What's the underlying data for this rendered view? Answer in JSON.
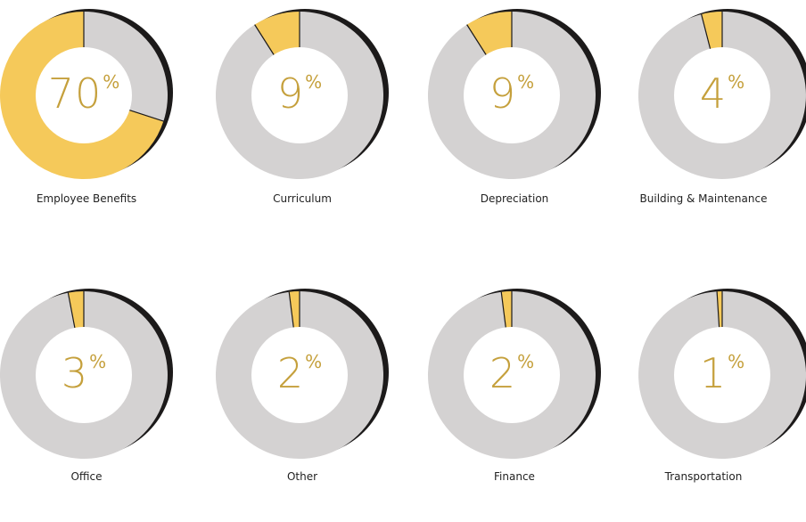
{
  "colors": {
    "highlight": "#f5c95a",
    "remainder": "#d4d2d2",
    "shadow": "#1c1a1a",
    "center": "#ffffff",
    "percent_text": "#c5a03c",
    "label_text": "#222222"
  },
  "percent_sign": "%",
  "chart_data": {
    "type": "pie",
    "series": [
      {
        "name": "Employee Benefits",
        "value": 70,
        "display": "70"
      },
      {
        "name": "Curriculum",
        "value": 9,
        "display": "9"
      },
      {
        "name": "Depreciation",
        "value": 9,
        "display": "9"
      },
      {
        "name": "Building & Maintenance",
        "value": 4,
        "display": "4"
      },
      {
        "name": "Office",
        "value": 3,
        "display": "3"
      },
      {
        "name": "Other",
        "value": 2,
        "display": "2"
      },
      {
        "name": "Finance",
        "value": 2,
        "display": "2"
      },
      {
        "name": "Transportation",
        "value": 1,
        "display": "1"
      }
    ]
  }
}
